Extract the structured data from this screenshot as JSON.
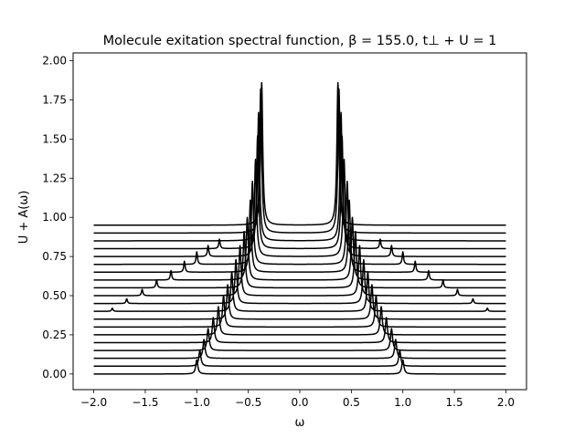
{
  "chart_data": {
    "type": "line",
    "title": "Molecule exitation spectral function, β = 155.0, t⊥ + U = 1",
    "xlabel": "ω",
    "ylabel": "U + A(ω)",
    "xlim": [
      -2.2,
      2.2
    ],
    "ylim": [
      -0.1,
      2.05
    ],
    "xticks": [
      {
        "value": -2.0,
        "label": "−2.0"
      },
      {
        "value": -1.5,
        "label": "−1.5"
      },
      {
        "value": -1.0,
        "label": "−1.0"
      },
      {
        "value": -0.5,
        "label": "−0.5"
      },
      {
        "value": 0.0,
        "label": "0.0"
      },
      {
        "value": 0.5,
        "label": "0.5"
      },
      {
        "value": 1.0,
        "label": "1.0"
      },
      {
        "value": 1.5,
        "label": "1.5"
      },
      {
        "value": 2.0,
        "label": "2.0"
      }
    ],
    "yticks": [
      {
        "value": 0.0,
        "label": "0.00"
      },
      {
        "value": 0.25,
        "label": "0.25"
      },
      {
        "value": 0.5,
        "label": "0.50"
      },
      {
        "value": 0.75,
        "label": "0.75"
      },
      {
        "value": 1.0,
        "label": "1.00"
      },
      {
        "value": 1.25,
        "label": "1.25"
      },
      {
        "value": 1.5,
        "label": "1.50"
      },
      {
        "value": 1.75,
        "label": "1.75"
      },
      {
        "value": 2.0,
        "label": "2.00"
      }
    ],
    "grid": false,
    "legend": "none",
    "line_color": "#000000",
    "x_range_of_curves": [
      -2.0,
      2.0
    ],
    "series": [
      {
        "offset": 0.0,
        "main_peak": 1.0,
        "main_height": 0.09,
        "satellite_peak": null,
        "satellite_height": 0.0
      },
      {
        "offset": 0.05,
        "main_peak": 0.97,
        "main_height": 0.1,
        "satellite_peak": null,
        "satellite_height": 0.0
      },
      {
        "offset": 0.1,
        "main_peak": 0.93,
        "main_height": 0.12,
        "satellite_peak": null,
        "satellite_height": 0.0
      },
      {
        "offset": 0.15,
        "main_peak": 0.89,
        "main_height": 0.14,
        "satellite_peak": null,
        "satellite_height": 0.0
      },
      {
        "offset": 0.2,
        "main_peak": 0.84,
        "main_height": 0.16,
        "satellite_peak": null,
        "satellite_height": 0.0
      },
      {
        "offset": 0.25,
        "main_peak": 0.79,
        "main_height": 0.18,
        "satellite_peak": null,
        "satellite_height": 0.0
      },
      {
        "offset": 0.3,
        "main_peak": 0.74,
        "main_height": 0.2,
        "satellite_peak": null,
        "satellite_height": 0.0
      },
      {
        "offset": 0.35,
        "main_peak": 0.7,
        "main_height": 0.22,
        "satellite_peak": null,
        "satellite_height": 0.0
      },
      {
        "offset": 0.4,
        "main_peak": 0.66,
        "main_height": 0.25,
        "satellite_peak": 1.82,
        "satellite_height": 0.02
      },
      {
        "offset": 0.45,
        "main_peak": 0.62,
        "main_height": 0.28,
        "satellite_peak": 1.68,
        "satellite_height": 0.03
      },
      {
        "offset": 0.5,
        "main_peak": 0.58,
        "main_height": 0.32,
        "satellite_peak": 1.53,
        "satellite_height": 0.04
      },
      {
        "offset": 0.55,
        "main_peak": 0.54,
        "main_height": 0.36,
        "satellite_peak": 1.39,
        "satellite_height": 0.05
      },
      {
        "offset": 0.6,
        "main_peak": 0.51,
        "main_height": 0.4,
        "satellite_peak": 1.25,
        "satellite_height": 0.06
      },
      {
        "offset": 0.65,
        "main_peak": 0.48,
        "main_height": 0.46,
        "satellite_peak": 1.12,
        "satellite_height": 0.07
      },
      {
        "offset": 0.7,
        "main_peak": 0.46,
        "main_height": 0.53,
        "satellite_peak": 1.0,
        "satellite_height": 0.08
      },
      {
        "offset": 0.75,
        "main_peak": 0.43,
        "main_height": 0.62,
        "satellite_peak": 0.89,
        "satellite_height": 0.07
      },
      {
        "offset": 0.8,
        "main_peak": 0.41,
        "main_height": 0.72,
        "satellite_peak": 0.78,
        "satellite_height": 0.06
      },
      {
        "offset": 0.85,
        "main_peak": 0.4,
        "main_height": 0.82,
        "satellite_peak": null,
        "satellite_height": 0.0
      },
      {
        "offset": 0.9,
        "main_peak": 0.38,
        "main_height": 0.92,
        "satellite_peak": null,
        "satellite_height": 0.0
      },
      {
        "offset": 0.95,
        "main_peak": 0.37,
        "main_height": 0.91,
        "satellite_peak": null,
        "satellite_height": 0.0
      }
    ]
  }
}
